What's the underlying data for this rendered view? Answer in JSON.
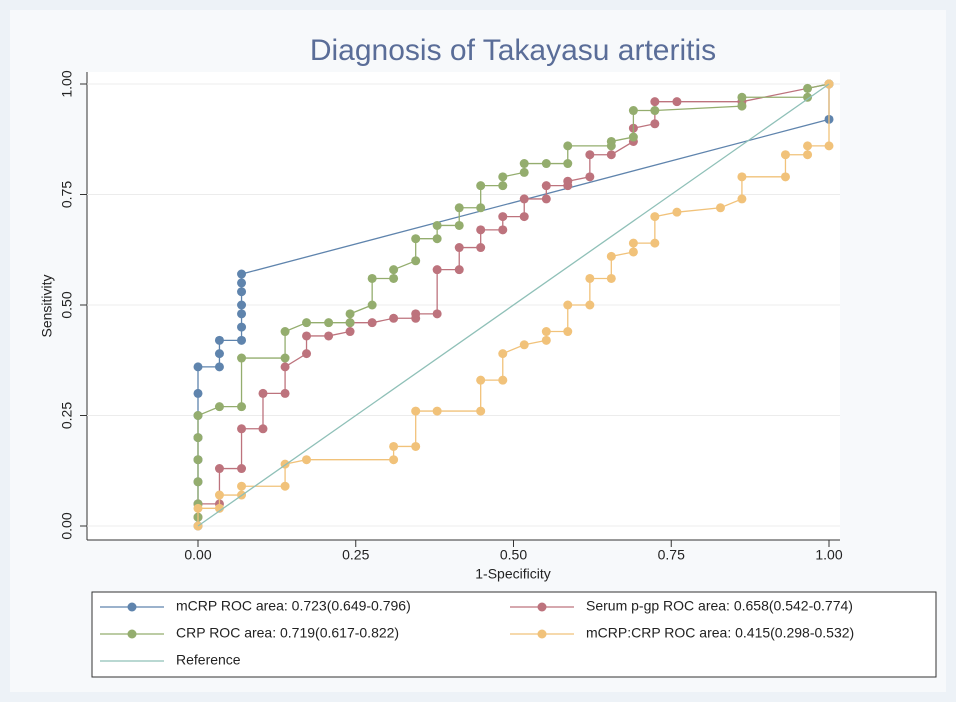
{
  "chart_data": {
    "type": "line",
    "title": "Diagnosis of Takayasu arteritis",
    "x_label": "1-Specificity",
    "y_label": "Sensitivity",
    "xlim": [
      0,
      1
    ],
    "ylim": [
      0,
      1
    ],
    "xticks": [
      {
        "value": 0,
        "label": "0.00"
      },
      {
        "value": 0.25,
        "label": "0.25"
      },
      {
        "value": 0.5,
        "label": "0.50"
      },
      {
        "value": 0.75,
        "label": "0.75"
      },
      {
        "value": 1,
        "label": "1.00"
      }
    ],
    "yticks": [
      {
        "value": 0,
        "label": "0.00"
      },
      {
        "value": 0.25,
        "label": "0.25"
      },
      {
        "value": 0.5,
        "label": "0.50"
      },
      {
        "value": 0.75,
        "label": "0.75"
      },
      {
        "value": 1,
        "label": "1.00"
      }
    ],
    "grid": true,
    "series": [
      {
        "name": "mCRP ROC area: 0.723(0.649-0.796)",
        "color": "#5f84ad",
        "markers": true,
        "x": [
          0,
          0,
          0,
          0,
          0,
          0,
          0,
          0,
          0.034,
          0.034,
          0.034,
          0.069,
          0.069,
          0.069,
          0.069,
          0.069,
          0.069,
          0.069,
          1,
          1
        ],
        "values": [
          0,
          0.05,
          0.1,
          0.15,
          0.2,
          0.25,
          0.3,
          0.36,
          0.36,
          0.39,
          0.42,
          0.42,
          0.45,
          0.48,
          0.5,
          0.53,
          0.55,
          0.57,
          0.92,
          1
        ]
      },
      {
        "name": "Serum p-gp ROC area: 0.658(0.542-0.774)",
        "color": "#bd737d",
        "markers": true,
        "x": [
          0,
          0,
          0.034,
          0.034,
          0.069,
          0.069,
          0.103,
          0.103,
          0.138,
          0.138,
          0.172,
          0.172,
          0.207,
          0.241,
          0.241,
          0.276,
          0.31,
          0.345,
          0.345,
          0.379,
          0.379,
          0.414,
          0.414,
          0.448,
          0.448,
          0.483,
          0.483,
          0.517,
          0.517,
          0.552,
          0.552,
          0.586,
          0.586,
          0.621,
          0.621,
          0.655,
          0.69,
          0.69,
          0.724,
          0.724,
          0.759,
          0.862,
          1
        ],
        "values": [
          0.02,
          0.05,
          0.05,
          0.13,
          0.13,
          0.22,
          0.22,
          0.3,
          0.3,
          0.36,
          0.39,
          0.43,
          0.43,
          0.44,
          0.46,
          0.46,
          0.47,
          0.47,
          0.48,
          0.48,
          0.58,
          0.58,
          0.63,
          0.63,
          0.67,
          0.67,
          0.7,
          0.7,
          0.74,
          0.74,
          0.77,
          0.77,
          0.78,
          0.79,
          0.84,
          0.84,
          0.87,
          0.9,
          0.91,
          0.96,
          0.96,
          0.96,
          1
        ]
      },
      {
        "name": "CRP ROC area: 0.719(0.617-0.822)",
        "color": "#94ad6e",
        "markers": true,
        "x": [
          0,
          0,
          0,
          0,
          0,
          0,
          0.034,
          0.069,
          0.069,
          0.138,
          0.138,
          0.172,
          0.207,
          0.241,
          0.241,
          0.276,
          0.276,
          0.31,
          0.31,
          0.345,
          0.345,
          0.379,
          0.379,
          0.414,
          0.414,
          0.448,
          0.448,
          0.483,
          0.483,
          0.517,
          0.517,
          0.552,
          0.586,
          0.586,
          0.655,
          0.655,
          0.69,
          0.69,
          0.724,
          0.862,
          0.862,
          0.966,
          0.966,
          1
        ],
        "values": [
          0.02,
          0.05,
          0.1,
          0.15,
          0.2,
          0.25,
          0.27,
          0.27,
          0.38,
          0.38,
          0.44,
          0.46,
          0.46,
          0.46,
          0.48,
          0.5,
          0.56,
          0.56,
          0.58,
          0.6,
          0.65,
          0.65,
          0.68,
          0.68,
          0.72,
          0.72,
          0.77,
          0.77,
          0.79,
          0.8,
          0.82,
          0.82,
          0.82,
          0.86,
          0.86,
          0.87,
          0.88,
          0.94,
          0.94,
          0.95,
          0.97,
          0.97,
          0.99,
          1
        ]
      },
      {
        "name": "mCRP:CRP ROC area: 0.415(0.298-0.532)",
        "color": "#f1c27a",
        "markers": true,
        "x": [
          0,
          0,
          0.034,
          0.034,
          0.069,
          0.069,
          0.138,
          0.138,
          0.172,
          0.31,
          0.31,
          0.345,
          0.345,
          0.379,
          0.448,
          0.448,
          0.483,
          0.483,
          0.517,
          0.552,
          0.552,
          0.586,
          0.586,
          0.621,
          0.621,
          0.655,
          0.655,
          0.69,
          0.69,
          0.724,
          0.724,
          0.759,
          0.828,
          0.862,
          0.862,
          0.931,
          0.931,
          0.966,
          0.966,
          1,
          1
        ],
        "values": [
          0,
          0.04,
          0.04,
          0.07,
          0.07,
          0.09,
          0.09,
          0.14,
          0.15,
          0.15,
          0.18,
          0.18,
          0.26,
          0.26,
          0.26,
          0.33,
          0.33,
          0.39,
          0.41,
          0.42,
          0.44,
          0.44,
          0.5,
          0.5,
          0.56,
          0.56,
          0.61,
          0.62,
          0.64,
          0.64,
          0.7,
          0.71,
          0.72,
          0.74,
          0.79,
          0.79,
          0.84,
          0.84,
          0.86,
          0.86,
          1
        ]
      },
      {
        "name": "Reference",
        "color": "#8fc0b8",
        "markers": false,
        "x": [
          0,
          1
        ],
        "values": [
          0,
          1
        ]
      }
    ]
  }
}
